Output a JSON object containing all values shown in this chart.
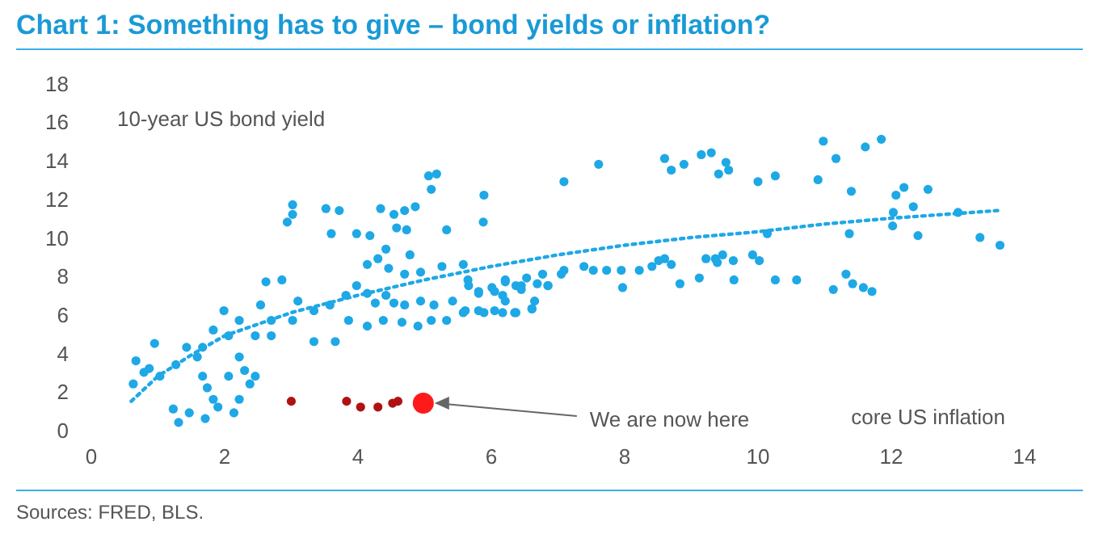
{
  "chart_data": {
    "type": "scatter",
    "title": "Chart 1: Something has to give – bond yields or inflation?",
    "xlabel": "core US inflation",
    "ylabel": "10-year US bond yield",
    "xlim": [
      0,
      14
    ],
    "xticks": [
      0,
      2,
      4,
      6,
      8,
      10,
      12,
      14
    ],
    "ylim": [
      0,
      18
    ],
    "yticks": [
      0,
      2,
      4,
      6,
      8,
      10,
      12,
      14,
      16,
      18
    ],
    "grid": false,
    "legend": false,
    "marker": "circle",
    "annotations": [
      {
        "text": "We are now here",
        "x": 4.98,
        "y": 1.5
      },
      "Sources: FRED, BLS."
    ],
    "series": [
      {
        "type": "scatter",
        "color": "#1ea8e6",
        "x": [
          0.63,
          0.67,
          0.87,
          0.95,
          1.23,
          1.31,
          1.47,
          1.71,
          1.74,
          1.83,
          1.67,
          1.9,
          2.14,
          2.22,
          2.38,
          2.06,
          2.22,
          1.59,
          1.27,
          1.43,
          1.99,
          2.22,
          2.54,
          2.62,
          2.86,
          3.1,
          3.02,
          3.34,
          3.58,
          3.66,
          3.34,
          2.7,
          2.46,
          2.94,
          3.02,
          3.02,
          3.52,
          3.72,
          3.6,
          3.98,
          4.18,
          4.34,
          4.54,
          4.7,
          4.86,
          5.1,
          5.06,
          5.18,
          5.89,
          5.88,
          5.33,
          4.73,
          4.58,
          4.42,
          4.3,
          4.14,
          4.46,
          4.7,
          4.94,
          4.78,
          5.26,
          5.58,
          3.98,
          3.82,
          4.14,
          4.42,
          4.26,
          4.54,
          4.7,
          4.94,
          5.14,
          5.42,
          5.66,
          5.81,
          6.05,
          6.21,
          6.45,
          6.69,
          6.85,
          6.21,
          6.05,
          6.37,
          6.61,
          5.89,
          5.58,
          5.33,
          5.1,
          4.9,
          4.66,
          4.38,
          4.14,
          3.86,
          2.7,
          2.3,
          2.46,
          2.06,
          1.83,
          1.67,
          1.03,
          0.79,
          7.09,
          7.61,
          8.6,
          8.7,
          8.89,
          9.15,
          9.3,
          9.52,
          9.41,
          9.56,
          10.0,
          10.26,
          10.9,
          10.98,
          11.17,
          11.61,
          11.85,
          11.4,
          12.07,
          12.19,
          12.33,
          12.55,
          12.03,
          12.02,
          12.4,
          11.37,
          13.0,
          13.33,
          13.63,
          10.14,
          7.05,
          7.09,
          7.39,
          7.53,
          7.73,
          7.95,
          7.97,
          8.22,
          8.41,
          8.51,
          8.6,
          8.7,
          8.83,
          9.12,
          9.22,
          9.36,
          9.47,
          9.39,
          9.63,
          9.64,
          9.92,
          10.02,
          10.26,
          10.58,
          11.13,
          11.32,
          11.42,
          11.58,
          11.71,
          5.65,
          5.81,
          6.01,
          6.21,
          6.37,
          6.53,
          6.77,
          6.85,
          6.17,
          6.65,
          5.81,
          6.17,
          6.61,
          6.35,
          5.61,
          6.45
        ],
        "values": [
          2.5,
          3.7,
          3.3,
          4.6,
          1.2,
          0.5,
          1.0,
          0.7,
          2.3,
          1.7,
          2.9,
          1.3,
          1.0,
          1.7,
          2.5,
          2.9,
          3.9,
          3.9,
          3.5,
          4.4,
          6.3,
          5.8,
          6.6,
          7.8,
          7.9,
          6.8,
          5.8,
          6.3,
          6.6,
          4.7,
          4.7,
          5.0,
          5.0,
          10.9,
          11.8,
          11.3,
          11.6,
          11.5,
          10.3,
          10.3,
          10.2,
          11.6,
          11.3,
          11.5,
          11.7,
          12.6,
          13.3,
          13.4,
          12.3,
          10.9,
          10.5,
          10.5,
          10.6,
          9.5,
          9.0,
          8.7,
          8.5,
          8.2,
          8.3,
          9.2,
          8.6,
          8.7,
          7.6,
          7.1,
          7.2,
          7.1,
          6.7,
          6.7,
          6.6,
          6.8,
          6.6,
          6.8,
          7.6,
          7.3,
          7.3,
          7.8,
          7.6,
          7.7,
          7.6,
          6.8,
          6.3,
          6.2,
          6.4,
          6.2,
          6.2,
          5.8,
          5.8,
          5.5,
          5.7,
          5.8,
          5.5,
          5.8,
          5.8,
          3.2,
          2.9,
          5.0,
          5.3,
          4.4,
          2.9,
          3.1,
          13.0,
          13.9,
          14.2,
          13.6,
          13.9,
          14.4,
          14.5,
          14.0,
          13.4,
          13.6,
          13.0,
          13.3,
          13.1,
          15.1,
          14.2,
          14.8,
          15.2,
          12.5,
          12.3,
          12.7,
          11.7,
          12.6,
          11.4,
          10.7,
          10.2,
          10.3,
          11.4,
          10.1,
          9.7,
          10.3,
          8.2,
          8.4,
          8.6,
          8.4,
          8.4,
          8.4,
          7.5,
          8.4,
          8.6,
          8.9,
          9.0,
          8.7,
          7.7,
          8.0,
          9.0,
          9.0,
          9.2,
          8.8,
          8.9,
          7.9,
          9.2,
          8.9,
          7.9,
          7.9,
          7.4,
          8.2,
          7.7,
          7.5,
          7.3,
          7.9,
          7.2,
          7.5,
          7.9,
          7.6,
          8.0,
          8.2,
          7.6,
          7.1,
          6.8,
          6.3,
          6.2,
          6.4,
          6.2,
          6.3,
          7.4
        ]
      },
      {
        "type": "line",
        "color": "#1ea8e6",
        "marker": "none",
        "line_style": "dotted",
        "x": [
          0.6,
          1,
          1.5,
          2,
          3,
          4,
          5,
          6,
          7,
          8,
          9,
          10,
          11,
          12,
          13.6
        ],
        "values": [
          1.6,
          2.9,
          4.0,
          5.0,
          6.2,
          7.1,
          7.9,
          8.6,
          9.2,
          9.7,
          10.1,
          10.4,
          10.8,
          11.1,
          11.5
        ]
      },
      {
        "type": "scatter",
        "color": "#b01212",
        "x": [
          3.0,
          3.83,
          4.04,
          4.3,
          4.52,
          4.6
        ],
        "values": [
          1.6,
          1.6,
          1.3,
          1.3,
          1.5,
          1.6
        ]
      },
      {
        "type": "scatter",
        "color": "#ff1a1a",
        "x": [
          4.98
        ],
        "values": [
          1.5
        ]
      }
    ]
  }
}
